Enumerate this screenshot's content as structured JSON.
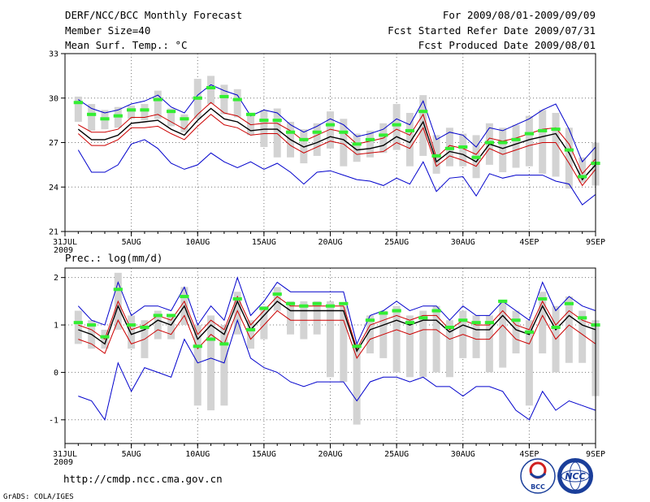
{
  "header": {
    "title": "DERF/NCC/BCC Monthly Forecast",
    "member_size": "Member Size=40",
    "period": "For 2009/08/01-2009/09/09",
    "started": "Fcst Started Refer Date 2009/07/31",
    "produced": "Fcst Produced Date 2009/08/01"
  },
  "footer": {
    "url": "http://cmdp.ncc.cma.gov.cn",
    "grads": "GrADS: COLA/IGES",
    "logo_bcc": "BCC",
    "logo_ncc": "NCC"
  },
  "x_axis": {
    "tick_labels": [
      "31JUL",
      "5AUG",
      "10AUG",
      "15AUG",
      "20AUG",
      "25AUG",
      "30AUG",
      "4SEP",
      "9SEP"
    ],
    "tick_days": [
      0,
      5,
      10,
      15,
      20,
      25,
      30,
      35,
      40
    ],
    "year_label": "2009",
    "range": [
      0,
      40
    ]
  },
  "chart_data": [
    {
      "type": "line",
      "title": "Mean Surf. Temp.: °C",
      "ylim": [
        21,
        33
      ],
      "y_ticks": [
        21,
        24,
        27,
        30,
        33
      ],
      "y_tick_labels": [
        "21",
        "24",
        "27",
        "30",
        "33"
      ],
      "grid": true,
      "x": [
        1,
        2,
        3,
        4,
        5,
        6,
        7,
        8,
        9,
        10,
        11,
        12,
        13,
        14,
        15,
        16,
        17,
        18,
        19,
        20,
        21,
        22,
        23,
        24,
        25,
        26,
        27,
        28,
        29,
        30,
        31,
        32,
        33,
        34,
        35,
        36,
        37,
        38,
        39,
        40
      ],
      "series": [
        {
          "name": "max",
          "color": "#0000cc",
          "values": [
            29.9,
            29.3,
            29.0,
            29.2,
            29.6,
            29.8,
            30.2,
            29.4,
            29.0,
            30.2,
            30.9,
            30.5,
            30.2,
            28.8,
            29.2,
            29.0,
            28.2,
            27.7,
            28.1,
            28.6,
            28.2,
            27.4,
            27.6,
            27.9,
            28.6,
            28.2,
            29.8,
            27.2,
            27.7,
            27.5,
            26.7,
            28.0,
            27.8,
            28.2,
            28.6,
            29.2,
            29.6,
            27.9,
            25.7,
            26.7
          ]
        },
        {
          "name": "upper",
          "color": "#cc0000",
          "values": [
            28.2,
            27.7,
            27.7,
            27.9,
            28.7,
            28.7,
            28.9,
            28.4,
            27.9,
            28.9,
            29.7,
            29.0,
            28.8,
            28.2,
            28.3,
            28.3,
            27.8,
            27.1,
            27.5,
            27.9,
            27.7,
            26.9,
            27.1,
            27.3,
            27.9,
            27.5,
            28.9,
            26.0,
            26.8,
            26.6,
            26.2,
            27.3,
            27.1,
            27.3,
            27.6,
            27.9,
            28.0,
            26.9,
            24.9,
            25.9
          ]
        },
        {
          "name": "mean",
          "color": "#000000",
          "values": [
            27.9,
            27.2,
            27.2,
            27.5,
            28.3,
            28.4,
            28.5,
            27.9,
            27.5,
            28.5,
            29.3,
            28.6,
            28.4,
            27.8,
            27.9,
            27.9,
            27.2,
            26.7,
            27.0,
            27.4,
            27.2,
            26.5,
            26.6,
            26.8,
            27.4,
            27.0,
            28.4,
            25.7,
            26.4,
            26.2,
            25.7,
            26.9,
            26.6,
            26.9,
            27.2,
            27.4,
            27.6,
            26.3,
            24.5,
            25.5
          ]
        },
        {
          "name": "lower",
          "color": "#cc0000",
          "values": [
            27.6,
            26.8,
            26.8,
            27.2,
            28.0,
            28.0,
            28.1,
            27.6,
            27.2,
            28.1,
            28.9,
            28.2,
            28.0,
            27.5,
            27.6,
            27.6,
            26.8,
            26.3,
            26.7,
            27.1,
            26.9,
            26.2,
            26.3,
            26.4,
            27.0,
            26.6,
            28.0,
            25.4,
            26.1,
            25.8,
            25.4,
            26.6,
            26.2,
            26.5,
            26.8,
            27.0,
            27.0,
            25.6,
            24.1,
            25.2
          ]
        },
        {
          "name": "min",
          "color": "#0000cc",
          "values": [
            26.5,
            25.0,
            25.0,
            25.5,
            26.9,
            27.2,
            26.6,
            25.6,
            25.2,
            25.5,
            26.3,
            25.7,
            25.3,
            25.7,
            25.2,
            25.6,
            25.0,
            24.2,
            25.0,
            25.1,
            24.8,
            24.5,
            24.4,
            24.1,
            24.6,
            24.2,
            25.7,
            23.7,
            24.6,
            24.7,
            23.4,
            24.9,
            24.6,
            24.8,
            24.8,
            24.8,
            24.4,
            24.2,
            22.8,
            23.5
          ]
        }
      ],
      "spread_bars": [
        {
          "x": 1,
          "lo": 28.4,
          "hi": 30.1
        },
        {
          "x": 2,
          "lo": 27.8,
          "hi": 29.6
        },
        {
          "x": 3,
          "lo": 27.9,
          "hi": 29.2
        },
        {
          "x": 4,
          "lo": 28.0,
          "hi": 29.4
        },
        {
          "x": 5,
          "lo": 28.6,
          "hi": 29.5
        },
        {
          "x": 6,
          "lo": 28.5,
          "hi": 29.6
        },
        {
          "x": 7,
          "lo": 28.6,
          "hi": 30.5
        },
        {
          "x": 8,
          "lo": 28.1,
          "hi": 29.3
        },
        {
          "x": 9,
          "lo": 27.7,
          "hi": 28.9
        },
        {
          "x": 10,
          "lo": 28.6,
          "hi": 31.3
        },
        {
          "x": 11,
          "lo": 29.6,
          "hi": 31.5
        },
        {
          "x": 12,
          "lo": 28.9,
          "hi": 30.9
        },
        {
          "x": 13,
          "lo": 28.7,
          "hi": 30.6
        },
        {
          "x": 14,
          "lo": 27.5,
          "hi": 29.0
        },
        {
          "x": 15,
          "lo": 26.7,
          "hi": 29.2
        },
        {
          "x": 16,
          "lo": 26.0,
          "hi": 29.3
        },
        {
          "x": 17,
          "lo": 26.0,
          "hi": 28.4
        },
        {
          "x": 18,
          "lo": 25.6,
          "hi": 27.9
        },
        {
          "x": 19,
          "lo": 26.1,
          "hi": 28.3
        },
        {
          "x": 20,
          "lo": 26.6,
          "hi": 29.1
        },
        {
          "x": 21,
          "lo": 25.4,
          "hi": 28.6
        },
        {
          "x": 22,
          "lo": 25.7,
          "hi": 27.6
        },
        {
          "x": 23,
          "lo": 26.0,
          "hi": 27.8
        },
        {
          "x": 24,
          "lo": 26.3,
          "hi": 28.3
        },
        {
          "x": 25,
          "lo": 26.5,
          "hi": 29.6
        },
        {
          "x": 26,
          "lo": 25.4,
          "hi": 29.0
        },
        {
          "x": 27,
          "lo": 26.1,
          "hi": 30.2
        },
        {
          "x": 28,
          "lo": 24.9,
          "hi": 27.5
        },
        {
          "x": 29,
          "lo": 25.4,
          "hi": 28.0
        },
        {
          "x": 30,
          "lo": 25.4,
          "hi": 27.6
        },
        {
          "x": 31,
          "lo": 24.6,
          "hi": 27.5
        },
        {
          "x": 32,
          "lo": 25.5,
          "hi": 28.3
        },
        {
          "x": 33,
          "lo": 25.0,
          "hi": 28.0
        },
        {
          "x": 34,
          "lo": 25.3,
          "hi": 28.2
        },
        {
          "x": 35,
          "lo": 25.4,
          "hi": 28.8
        },
        {
          "x": 36,
          "lo": 24.9,
          "hi": 29.2
        },
        {
          "x": 37,
          "lo": 24.7,
          "hi": 29.0
        },
        {
          "x": 38,
          "lo": 23.9,
          "hi": 28.0
        },
        {
          "x": 39,
          "lo": 24.3,
          "hi": 26.0
        },
        {
          "x": 40,
          "lo": 24.1,
          "hi": 27.0
        }
      ],
      "markers": {
        "name": "observed",
        "color": "#33ee33",
        "values": [
          29.7,
          28.9,
          28.6,
          28.8,
          29.2,
          29.2,
          29.9,
          29.1,
          28.6,
          30.0,
          30.7,
          30.1,
          29.9,
          28.9,
          28.5,
          28.5,
          27.7,
          27.2,
          27.7,
          28.2,
          27.7,
          26.9,
          27.2,
          27.5,
          28.2,
          27.8,
          29.1,
          26.1,
          26.6,
          26.7,
          26.0,
          27.0,
          27.0,
          27.2,
          27.6,
          27.8,
          27.9,
          26.5,
          24.7,
          25.6
        ]
      }
    },
    {
      "type": "line",
      "title": "Prec.: log(mm/d)",
      "ylim": [
        -1.5,
        2.2
      ],
      "y_ticks": [
        -1,
        0,
        1,
        2
      ],
      "y_tick_labels": [
        "-1",
        "0",
        "1",
        "2"
      ],
      "grid": true,
      "x": [
        1,
        2,
        3,
        4,
        5,
        6,
        7,
        8,
        9,
        10,
        11,
        12,
        13,
        14,
        15,
        16,
        17,
        18,
        19,
        20,
        21,
        22,
        23,
        24,
        25,
        26,
        27,
        28,
        29,
        30,
        31,
        32,
        33,
        34,
        35,
        36,
        37,
        38,
        39,
        40
      ],
      "series": [
        {
          "name": "max",
          "color": "#0000cc",
          "values": [
            1.4,
            1.1,
            1.0,
            1.9,
            1.2,
            1.4,
            1.4,
            1.3,
            1.8,
            1.0,
            1.4,
            1.1,
            2.0,
            1.2,
            1.5,
            1.9,
            1.7,
            1.7,
            1.7,
            1.7,
            1.7,
            0.6,
            1.2,
            1.3,
            1.5,
            1.3,
            1.4,
            1.4,
            1.1,
            1.4,
            1.2,
            1.2,
            1.5,
            1.3,
            1.1,
            1.9,
            1.3,
            1.6,
            1.4,
            1.3
          ]
        },
        {
          "name": "upper",
          "color": "#cc0000",
          "values": [
            1.0,
            0.9,
            0.7,
            1.5,
            0.9,
            1.0,
            1.2,
            1.1,
            1.5,
            0.8,
            1.1,
            0.9,
            1.6,
            1.0,
            1.3,
            1.6,
            1.4,
            1.4,
            1.4,
            1.4,
            1.4,
            0.5,
            1.0,
            1.1,
            1.2,
            1.1,
            1.2,
            1.2,
            0.9,
            1.1,
            1.0,
            1.0,
            1.3,
            1.0,
            0.9,
            1.5,
            1.0,
            1.3,
            1.1,
            1.0
          ]
        },
        {
          "name": "mean",
          "color": "#000000",
          "values": [
            0.9,
            0.8,
            0.6,
            1.4,
            0.8,
            0.9,
            1.1,
            1.0,
            1.4,
            0.7,
            1.0,
            0.8,
            1.5,
            0.9,
            1.2,
            1.5,
            1.3,
            1.3,
            1.3,
            1.3,
            1.3,
            0.45,
            0.9,
            1.0,
            1.1,
            1.0,
            1.1,
            1.1,
            0.85,
            1.0,
            0.9,
            0.9,
            1.2,
            0.9,
            0.8,
            1.4,
            0.9,
            1.2,
            1.0,
            0.9
          ]
        },
        {
          "name": "lower",
          "color": "#cc0000",
          "values": [
            0.7,
            0.6,
            0.4,
            1.1,
            0.6,
            0.7,
            0.9,
            0.8,
            1.2,
            0.5,
            0.8,
            0.6,
            1.3,
            0.7,
            1.0,
            1.3,
            1.1,
            1.1,
            1.1,
            1.1,
            1.1,
            0.3,
            0.7,
            0.8,
            0.9,
            0.8,
            0.9,
            0.9,
            0.7,
            0.8,
            0.7,
            0.7,
            1.0,
            0.7,
            0.6,
            1.2,
            0.7,
            1.0,
            0.8,
            0.6
          ]
        },
        {
          "name": "min",
          "color": "#0000cc",
          "values": [
            -0.5,
            -0.6,
            -1.0,
            0.2,
            -0.4,
            0.1,
            0.0,
            -0.1,
            0.7,
            0.2,
            0.3,
            0.2,
            1.1,
            0.3,
            0.1,
            0.0,
            -0.2,
            -0.3,
            -0.2,
            -0.2,
            -0.2,
            -0.6,
            -0.2,
            -0.1,
            -0.1,
            -0.2,
            -0.1,
            -0.3,
            -0.3,
            -0.5,
            -0.3,
            -0.3,
            -0.4,
            -0.8,
            -1.0,
            -0.4,
            -0.8,
            -0.6,
            -0.7,
            -0.8
          ]
        }
      ],
      "spread_bars": [
        {
          "x": 1,
          "lo": 0.6,
          "hi": 1.3
        },
        {
          "x": 2,
          "lo": 0.5,
          "hi": 1.1
        },
        {
          "x": 3,
          "lo": 0.5,
          "hi": 0.9
        },
        {
          "x": 4,
          "lo": 0.9,
          "hi": 2.1
        },
        {
          "x": 5,
          "lo": 0.5,
          "hi": 1.2
        },
        {
          "x": 6,
          "lo": 0.3,
          "hi": 1.1
        },
        {
          "x": 7,
          "lo": 0.7,
          "hi": 1.3
        },
        {
          "x": 8,
          "lo": 0.7,
          "hi": 1.2
        },
        {
          "x": 9,
          "lo": 1.0,
          "hi": 1.8
        },
        {
          "x": 10,
          "lo": -0.7,
          "hi": 1.0
        },
        {
          "x": 11,
          "lo": -0.8,
          "hi": 1.2
        },
        {
          "x": 12,
          "lo": -0.7,
          "hi": 1.0
        },
        {
          "x": 13,
          "lo": 0.8,
          "hi": 1.7
        },
        {
          "x": 14,
          "lo": 0.5,
          "hi": 1.1
        },
        {
          "x": 15,
          "lo": 0.7,
          "hi": 1.4
        },
        {
          "x": 16,
          "lo": 1.3,
          "hi": 1.8
        },
        {
          "x": 17,
          "lo": 0.8,
          "hi": 1.5
        },
        {
          "x": 18,
          "lo": 0.7,
          "hi": 1.5
        },
        {
          "x": 19,
          "lo": 0.8,
          "hi": 1.5
        },
        {
          "x": 20,
          "lo": -0.1,
          "hi": 1.5
        },
        {
          "x": 21,
          "lo": -0.2,
          "hi": 1.4
        },
        {
          "x": 22,
          "lo": -1.1,
          "hi": 0.6
        },
        {
          "x": 23,
          "lo": 0.4,
          "hi": 1.2
        },
        {
          "x": 24,
          "lo": 0.3,
          "hi": 1.3
        },
        {
          "x": 25,
          "lo": 0.0,
          "hi": 1.4
        },
        {
          "x": 26,
          "lo": -0.1,
          "hi": 1.2
        },
        {
          "x": 27,
          "lo": -0.1,
          "hi": 1.3
        },
        {
          "x": 28,
          "lo": 0.0,
          "hi": 1.4
        },
        {
          "x": 29,
          "lo": -0.1,
          "hi": 1.1
        },
        {
          "x": 30,
          "lo": 0.3,
          "hi": 1.3
        },
        {
          "x": 31,
          "lo": 0.3,
          "hi": 1.2
        },
        {
          "x": 32,
          "lo": 0.0,
          "hi": 1.2
        },
        {
          "x": 33,
          "lo": 0.1,
          "hi": 1.5
        },
        {
          "x": 34,
          "lo": 0.4,
          "hi": 1.3
        },
        {
          "x": 35,
          "lo": -0.7,
          "hi": 1.1
        },
        {
          "x": 36,
          "lo": 0.4,
          "hi": 1.7
        },
        {
          "x": 37,
          "lo": 0.0,
          "hi": 1.4
        },
        {
          "x": 38,
          "lo": 0.2,
          "hi": 1.6
        },
        {
          "x": 39,
          "lo": 0.2,
          "hi": 1.3
        },
        {
          "x": 40,
          "lo": -0.5,
          "hi": 1.1
        }
      ],
      "markers": {
        "name": "observed",
        "color": "#33ee33",
        "values": [
          1.05,
          1.0,
          0.75,
          1.75,
          1.0,
          0.95,
          1.2,
          1.2,
          1.6,
          0.55,
          0.7,
          0.6,
          1.55,
          0.9,
          1.35,
          1.65,
          1.45,
          1.4,
          1.45,
          1.4,
          1.45,
          0.55,
          1.1,
          1.25,
          1.3,
          1.05,
          1.15,
          1.3,
          0.95,
          1.1,
          1.05,
          1.05,
          1.5,
          1.1,
          0.85,
          1.55,
          0.95,
          1.45,
          1.15,
          1.0
        ]
      }
    }
  ]
}
